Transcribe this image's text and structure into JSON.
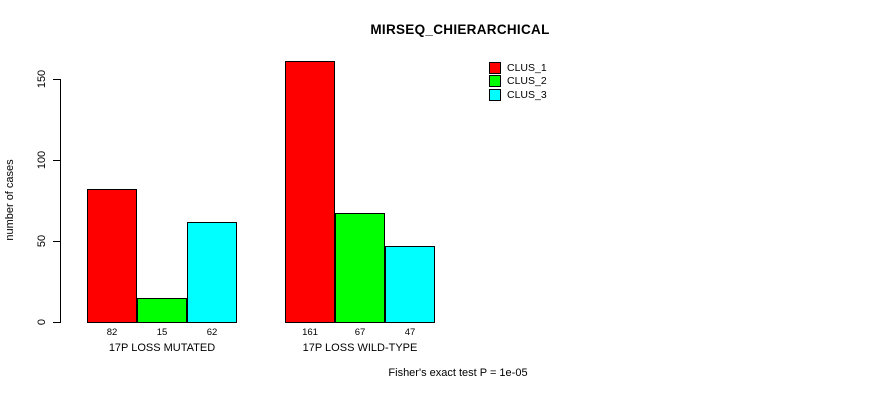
{
  "chart_data": {
    "type": "bar",
    "title": "MIRSEQ_CHIERARCHICAL",
    "ylabel": "number of cases",
    "xlabel": "",
    "categories": [
      "17P LOSS MUTATED",
      "17P LOSS WILD-TYPE"
    ],
    "series": [
      {
        "name": "CLUS_1",
        "color": "#FF0000",
        "values": [
          82,
          161
        ]
      },
      {
        "name": "CLUS_2",
        "color": "#00FF00",
        "values": [
          15,
          67
        ]
      },
      {
        "name": "CLUS_3",
        "color": "#00FFFF",
        "values": [
          62,
          47
        ]
      }
    ],
    "bar_value_labels": [
      [
        "82",
        "15",
        "62"
      ],
      [
        "161",
        "67",
        "47"
      ]
    ],
    "ylim": [
      0,
      150
    ],
    "yticks": [
      "0",
      "50",
      "100",
      "150"
    ],
    "grid": false,
    "legend_position": "top-right",
    "footer": "Fisher's exact test P = 1e-05"
  }
}
